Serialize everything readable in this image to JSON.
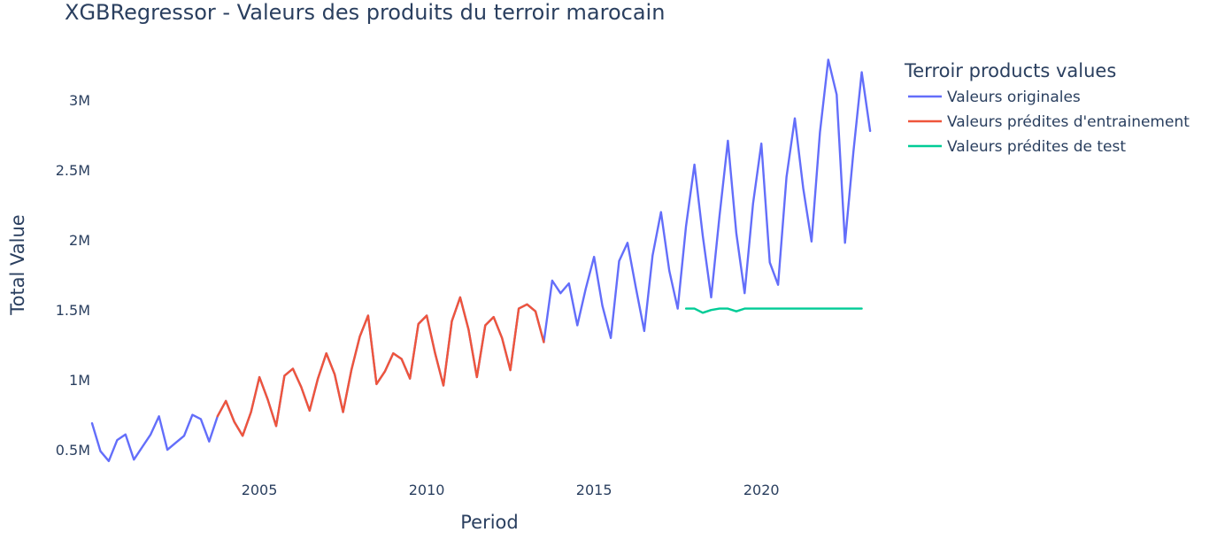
{
  "chart_data": {
    "type": "line",
    "title": "XGBRegressor - Valeurs des produits du terroir marocain",
    "xlabel": "Period",
    "ylabel": "Total Value",
    "xlim": [
      2000.0,
      2023.75
    ],
    "ylim": [
      330000,
      3400000
    ],
    "x_ticks": [
      2005,
      2010,
      2015,
      2020
    ],
    "x_tick_labels": [
      "2005",
      "2010",
      "2015",
      "2020"
    ],
    "y_ticks": [
      500000,
      1000000,
      1500000,
      2000000,
      2500000,
      3000000
    ],
    "y_tick_labels": [
      "0.5M",
      "1M",
      "1.5M",
      "2M",
      "2.5M",
      "3M"
    ],
    "legend": {
      "title": "Terroir products values",
      "position": "top-right"
    },
    "grid": false,
    "series": [
      {
        "name": "Valeurs originales",
        "color": "#636efa",
        "points": [
          [
            2000.0,
            690000
          ],
          [
            2000.25,
            490000
          ],
          [
            2000.5,
            420000
          ],
          [
            2000.75,
            570000
          ],
          [
            2001.0,
            610000
          ],
          [
            2001.25,
            430000
          ],
          [
            2001.5,
            520000
          ],
          [
            2001.75,
            610000
          ],
          [
            2002.0,
            740000
          ],
          [
            2002.25,
            500000
          ],
          [
            2002.5,
            550000
          ],
          [
            2002.75,
            600000
          ],
          [
            2003.0,
            750000
          ],
          [
            2003.25,
            720000
          ],
          [
            2003.5,
            560000
          ],
          [
            2003.75,
            740000
          ],
          [
            2004.0,
            850000
          ],
          [
            2004.25,
            700000
          ],
          [
            2004.5,
            600000
          ],
          [
            2004.75,
            770000
          ],
          [
            2005.0,
            1020000
          ],
          [
            2005.25,
            860000
          ],
          [
            2005.5,
            670000
          ],
          [
            2005.75,
            1030000
          ],
          [
            2006.0,
            1080000
          ],
          [
            2006.25,
            950000
          ],
          [
            2006.5,
            780000
          ],
          [
            2006.75,
            1010000
          ],
          [
            2007.0,
            1190000
          ],
          [
            2007.25,
            1040000
          ],
          [
            2007.5,
            770000
          ],
          [
            2007.75,
            1070000
          ],
          [
            2008.0,
            1310000
          ],
          [
            2008.25,
            1460000
          ],
          [
            2008.5,
            970000
          ],
          [
            2008.75,
            1060000
          ],
          [
            2009.0,
            1190000
          ],
          [
            2009.25,
            1150000
          ],
          [
            2009.5,
            1010000
          ],
          [
            2009.75,
            1400000
          ],
          [
            2010.0,
            1460000
          ],
          [
            2010.25,
            1190000
          ],
          [
            2010.5,
            960000
          ],
          [
            2010.75,
            1420000
          ],
          [
            2011.0,
            1590000
          ],
          [
            2011.25,
            1360000
          ],
          [
            2011.5,
            1020000
          ],
          [
            2011.75,
            1390000
          ],
          [
            2012.0,
            1450000
          ],
          [
            2012.25,
            1300000
          ],
          [
            2012.5,
            1070000
          ],
          [
            2012.75,
            1510000
          ],
          [
            2013.0,
            1540000
          ],
          [
            2013.25,
            1490000
          ],
          [
            2013.5,
            1270000
          ],
          [
            2013.75,
            1710000
          ],
          [
            2014.0,
            1620000
          ],
          [
            2014.25,
            1690000
          ],
          [
            2014.5,
            1390000
          ],
          [
            2014.75,
            1650000
          ],
          [
            2015.0,
            1880000
          ],
          [
            2015.25,
            1530000
          ],
          [
            2015.5,
            1300000
          ],
          [
            2015.75,
            1850000
          ],
          [
            2016.0,
            1980000
          ],
          [
            2016.25,
            1660000
          ],
          [
            2016.5,
            1350000
          ],
          [
            2016.75,
            1890000
          ],
          [
            2017.0,
            2200000
          ],
          [
            2017.25,
            1780000
          ],
          [
            2017.5,
            1510000
          ],
          [
            2017.75,
            2100000
          ],
          [
            2018.0,
            2540000
          ],
          [
            2018.25,
            2030000
          ],
          [
            2018.5,
            1590000
          ],
          [
            2018.75,
            2170000
          ],
          [
            2019.0,
            2710000
          ],
          [
            2019.25,
            2050000
          ],
          [
            2019.5,
            1620000
          ],
          [
            2019.75,
            2260000
          ],
          [
            2020.0,
            2690000
          ],
          [
            2020.25,
            1840000
          ],
          [
            2020.5,
            1680000
          ],
          [
            2020.75,
            2450000
          ],
          [
            2021.0,
            2870000
          ],
          [
            2021.25,
            2370000
          ],
          [
            2021.5,
            1990000
          ],
          [
            2021.75,
            2770000
          ],
          [
            2022.0,
            3290000
          ],
          [
            2022.25,
            3040000
          ],
          [
            2022.5,
            1980000
          ],
          [
            2022.75,
            2630000
          ],
          [
            2023.0,
            3200000
          ],
          [
            2023.25,
            2780000
          ]
        ]
      },
      {
        "name": "Valeurs prédites d'entrainement",
        "color": "#ef553b",
        "points": [
          [
            2003.75,
            740000
          ],
          [
            2004.0,
            850000
          ],
          [
            2004.25,
            700000
          ],
          [
            2004.5,
            600000
          ],
          [
            2004.75,
            770000
          ],
          [
            2005.0,
            1020000
          ],
          [
            2005.25,
            860000
          ],
          [
            2005.5,
            670000
          ],
          [
            2005.75,
            1030000
          ],
          [
            2006.0,
            1080000
          ],
          [
            2006.25,
            950000
          ],
          [
            2006.5,
            780000
          ],
          [
            2006.75,
            1010000
          ],
          [
            2007.0,
            1190000
          ],
          [
            2007.25,
            1040000
          ],
          [
            2007.5,
            770000
          ],
          [
            2007.75,
            1070000
          ],
          [
            2008.0,
            1310000
          ],
          [
            2008.25,
            1460000
          ],
          [
            2008.5,
            970000
          ],
          [
            2008.75,
            1060000
          ],
          [
            2009.0,
            1190000
          ],
          [
            2009.25,
            1150000
          ],
          [
            2009.5,
            1010000
          ],
          [
            2009.75,
            1400000
          ],
          [
            2010.0,
            1460000
          ],
          [
            2010.25,
            1190000
          ],
          [
            2010.5,
            960000
          ],
          [
            2010.75,
            1420000
          ],
          [
            2011.0,
            1590000
          ],
          [
            2011.25,
            1360000
          ],
          [
            2011.5,
            1020000
          ],
          [
            2011.75,
            1390000
          ],
          [
            2012.0,
            1450000
          ],
          [
            2012.25,
            1300000
          ],
          [
            2012.5,
            1070000
          ],
          [
            2012.75,
            1510000
          ],
          [
            2013.0,
            1540000
          ],
          [
            2013.25,
            1490000
          ],
          [
            2013.5,
            1270000
          ]
        ]
      },
      {
        "name": "Valeurs prédites de test",
        "color": "#00cc96",
        "points": [
          [
            2017.75,
            1510000
          ],
          [
            2018.0,
            1510000
          ],
          [
            2018.25,
            1480000
          ],
          [
            2018.5,
            1500000
          ],
          [
            2018.75,
            1510000
          ],
          [
            2019.0,
            1510000
          ],
          [
            2019.25,
            1490000
          ],
          [
            2019.5,
            1510000
          ],
          [
            2019.75,
            1510000
          ],
          [
            2020.0,
            1510000
          ],
          [
            2020.25,
            1510000
          ],
          [
            2020.5,
            1510000
          ],
          [
            2020.75,
            1510000
          ],
          [
            2021.0,
            1510000
          ],
          [
            2021.25,
            1510000
          ],
          [
            2021.5,
            1510000
          ],
          [
            2021.75,
            1510000
          ],
          [
            2022.0,
            1510000
          ],
          [
            2022.25,
            1510000
          ],
          [
            2022.5,
            1510000
          ],
          [
            2022.75,
            1510000
          ],
          [
            2023.0,
            1510000
          ]
        ]
      }
    ]
  }
}
